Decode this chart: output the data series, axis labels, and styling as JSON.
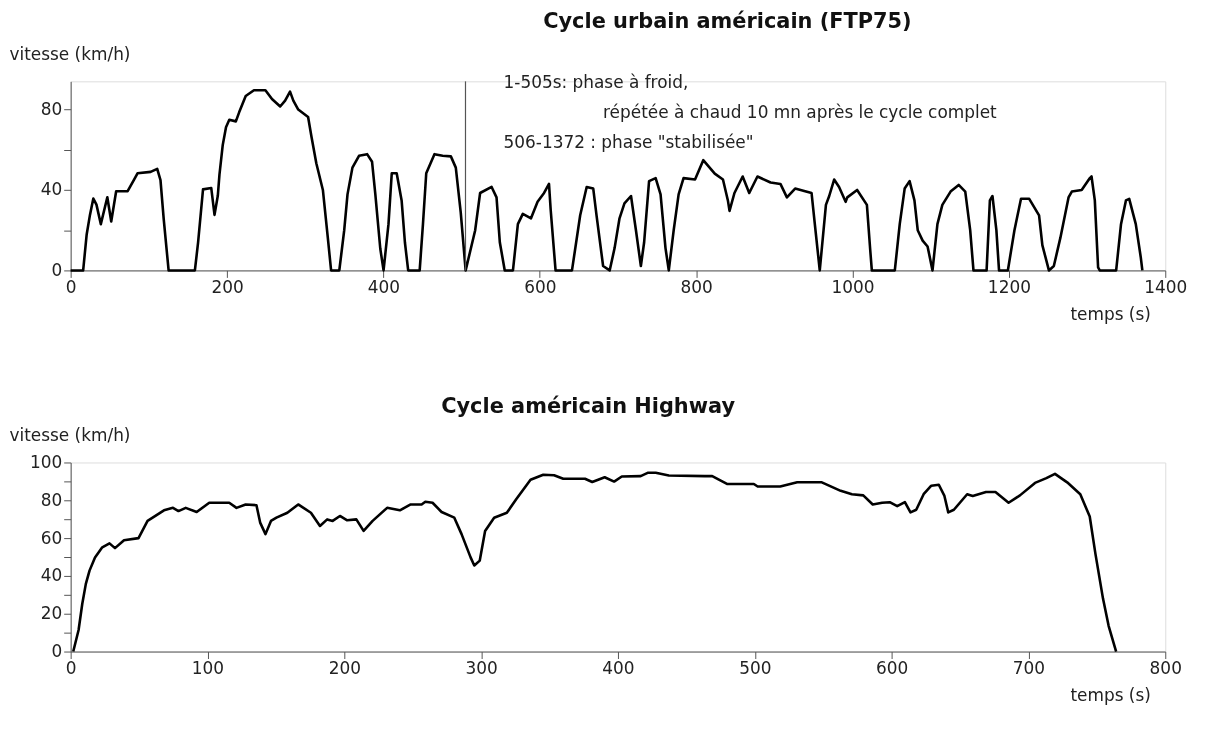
{
  "chart_data": [
    {
      "type": "line",
      "title": "Cycle urbain américain (FTP75)",
      "xlabel": "temps (s)",
      "ylabel": "vitesse (km/h)",
      "annotations": [
        "1-505s: phase à froid,",
        "répétée à chaud 10 mn après le cycle complet",
        "506-1372 : phase \"stabilisée\""
      ],
      "xlim": [
        0,
        1400
      ],
      "ylim": [
        0,
        94
      ],
      "xticks": [
        0,
        200,
        400,
        600,
        800,
        1000,
        1200,
        1400
      ],
      "yticks": [
        0,
        {
          "value": 20,
          "label": null
        },
        40,
        {
          "value": 60,
          "label": null
        },
        80
      ],
      "ref_lines": [
        {
          "axis": "x",
          "value": 505,
          "color": "#555555"
        }
      ],
      "x": [
        0,
        16,
        20.5,
        24.7,
        29,
        33,
        38.6,
        46.9,
        51.9,
        58.2,
        72.9,
        81.3,
        85.5,
        102.3,
        110.7,
        114.9,
        119,
        125.3,
        158.9,
        163,
        169.3,
        179.8,
        184,
        188.2,
        190.3,
        194.5,
        198.7,
        202.9,
        211.3,
        215.5,
        223.9,
        234.4,
        249.1,
        257.5,
        268,
        274.3,
        280.6,
        284.8,
        291.1,
        303.7,
        307.9,
        314.2,
        322.6,
        328.9,
        333.1,
        343.6,
        349.9,
        354.1,
        360.4,
        368.8,
        379.2,
        385.5,
        389.7,
        396,
        400.2,
        406.5,
        410.7,
        417,
        423.3,
        427.5,
        431.7,
        446.4,
        450.6,
        454.8,
        465.3,
        475.8,
        486.3,
        492.6,
        498.9,
        505.2,
        517.4,
        523.7,
        538.4,
        544.7,
        548.9,
        555.2,
        565.7,
        572,
        578.3,
        588.8,
        597.2,
        605.5,
        611.8,
        613.9,
        620.2,
        641.2,
        651.7,
        660,
        668.4,
        672.6,
        681,
        689.4,
        695.7,
        702,
        708.3,
        716.7,
        723,
        729.3,
        733.5,
        739.8,
        748.2,
        754.5,
        760.8,
        765,
        771.3,
        777.6,
        783.9,
        798.6,
        809.1,
        823.8,
        834.3,
        840.6,
        842.7,
        849,
        859.5,
        867.9,
        878.4,
        895.2,
        907.8,
        916.1,
        926.6,
        947.6,
        951.8,
        958.1,
        966,
        970.2,
        976.5,
        982.8,
        991.2,
        993.3,
        1005.9,
        1018.4,
        1022.6,
        1024.7,
        1054.1,
        1060.4,
        1066.7,
        1073,
        1079.2,
        1083.4,
        1089.7,
        1096,
        1102.3,
        1108.6,
        1114.9,
        1125.4,
        1135.8,
        1144.2,
        1150.5,
        1154.7,
        1171.5,
        1175.7,
        1179,
        1184,
        1187.4,
        1198.7,
        1207.1,
        1215.5,
        1226,
        1238.6,
        1242.8,
        1251.2,
        1257.5,
        1265.9,
        1276.3,
        1280.5,
        1293.1,
        1303.6,
        1305.7,
        1309.9,
        1314.1,
        1316.2,
        1337.2,
        1343.4,
        1349.7,
        1353.9,
        1362.3,
        1368.6,
        1370.7
      ],
      "series": [
        {
          "color": "#000000",
          "values": [
            0,
            0,
            17.9,
            27.6,
            35.7,
            32.7,
            23,
            36.4,
            24.3,
            39.4,
            39.4,
            45.3,
            48.3,
            49,
            50.5,
            44.9,
            25.6,
            0,
            0,
            13.9,
            40.3,
            41,
            27.6,
            37.1,
            47.5,
            62.3,
            71.2,
            74.9,
            74.1,
            78.6,
            86.7,
            89.6,
            89.6,
            85.2,
            81.5,
            84.4,
            88.9,
            84.4,
            80,
            76.3,
            66.7,
            53.3,
            40,
            16.3,
            0,
            0,
            20,
            37.8,
            51.1,
            57,
            57.8,
            54,
            37.8,
            10.9,
            0,
            23,
            48.3,
            48.3,
            34.8,
            14,
            0,
            0,
            23,
            48.3,
            57.8,
            57,
            56.7,
            51.1,
            28.9,
            0,
            20,
            38.5,
            41.5,
            36.3,
            14,
            0,
            0,
            23,
            28.1,
            25.9,
            34.1,
            38.5,
            43,
            30.4,
            0,
            0,
            27.4,
            41.5,
            40.7,
            27.4,
            2.2,
            0,
            11.1,
            25.9,
            33.3,
            37,
            20,
            2.2,
            14,
            44.4,
            45.9,
            37.8,
            11.1,
            0,
            20,
            37.8,
            45.9,
            45.2,
            54.8,
            48.1,
            45.2,
            34.8,
            29.6,
            38.5,
            46.7,
            38.5,
            46.7,
            43.7,
            43,
            36.3,
            40.7,
            38.5,
            23,
            0,
            32.6,
            37,
            45.2,
            41.5,
            34.1,
            36.3,
            40,
            32.6,
            10.4,
            0,
            0,
            23,
            40.7,
            44.4,
            34.8,
            20,
            14.8,
            11.9,
            0,
            23,
            32.6,
            39.2,
            42.5,
            39.2,
            20,
            0,
            0,
            34.8,
            37,
            20,
            0,
            0,
            20,
            35.6,
            35.6,
            27.4,
            12.6,
            0,
            2.2,
            16.3,
            36.3,
            39.2,
            40,
            45.9,
            46.7,
            34.8,
            1.5,
            0,
            0,
            23,
            34.8,
            35.6,
            23,
            6.7,
            0
          ]
        }
      ]
    },
    {
      "type": "line",
      "title": "Cycle américain Highway",
      "xlabel": "temps (s)",
      "ylabel": "vitesse (km/h)",
      "xlim": [
        0,
        800
      ],
      "ylim": [
        0,
        100
      ],
      "xticks": [
        0,
        100,
        200,
        300,
        400,
        500,
        600,
        700,
        800
      ],
      "yticks": [
        0,
        {
          "value": 10,
          "label": null
        },
        20,
        {
          "value": 30,
          "label": null
        },
        40,
        {
          "value": 50,
          "label": null
        },
        60,
        {
          "value": 70,
          "label": null
        },
        80,
        {
          "value": 90,
          "label": null
        },
        100
      ],
      "x": [
        1.9,
        5.8,
        8.5,
        11.1,
        13.8,
        17.8,
        23.1,
        28.4,
        32.4,
        39,
        49.6,
        56.2,
        68.2,
        74.8,
        78.8,
        84.1,
        92.1,
        101.3,
        115.9,
        121.2,
        127.9,
        135.8,
        138.5,
        142.4,
        146.4,
        150.4,
        158.4,
        166.3,
        175.6,
        182.2,
        187.5,
        191.5,
        196.8,
        202.1,
        208.8,
        214.1,
        220.7,
        231.3,
        240.6,
        248.5,
        256.5,
        259.2,
        264.5,
        271.1,
        280.4,
        285.7,
        292.3,
        295,
        299,
        302.9,
        309.5,
        318.8,
        325.5,
        336.1,
        345.4,
        353.3,
        360,
        375.9,
        381.2,
        390.3,
        397.2,
        402.8,
        416.6,
        422.1,
        427.6,
        437.2,
        463.4,
        468.9,
        480,
        499.3,
        502.1,
        518.6,
        531,
        549,
        562.8,
        571,
        579.3,
        586.2,
        593.1,
        598.6,
        604.1,
        609.7,
        613.8,
        618,
        623.4,
        629,
        634.5,
        638.6,
        641.4,
        645.5,
        655.2,
        659.3,
        669,
        675.9,
        685.5,
        693.8,
        704.8,
        713.1,
        719.4,
        728.3,
        737.9,
        744.8,
        749,
        754.5,
        758.6,
        764.1
      ],
      "series": [
        {
          "color": "#000000",
          "values": [
            0,
            11.4,
            25.3,
            35.8,
            42.8,
            49.8,
            55.1,
            57.2,
            54.7,
            58.9,
            60,
            69.1,
            74.7,
            76,
            74.3,
            76,
            73.8,
            78.7,
            78.7,
            76,
            77.8,
            77.4,
            68.2,
            62.1,
            69.1,
            70.8,
            73.4,
            77.8,
            73.4,
            66.4,
            69.9,
            69.1,
            71.7,
            69.4,
            69.9,
            63.8,
            69.1,
            76,
            74.7,
            77.8,
            77.8,
            79.2,
            78.7,
            73.8,
            70.8,
            62.1,
            49.8,
            45.5,
            48.1,
            63.8,
            70.8,
            73.4,
            80.4,
            90.9,
            93.5,
            93.2,
            91.4,
            91.4,
            89.7,
            92.2,
            89.9,
            92.6,
            92.8,
            94.6,
            94.6,
            93.1,
            92.8,
            92.8,
            88.6,
            88.6,
            87.3,
            87.3,
            89.5,
            89.5,
            85,
            83.2,
            82.6,
            77.8,
            78.7,
            79,
            76.9,
            79,
            73.6,
            75,
            83.2,
            87.7,
            88.2,
            82.3,
            73.6,
            75,
            83.2,
            82.3,
            84.4,
            84.4,
            78.7,
            82.6,
            89.2,
            91.7,
            94,
            89.5,
            83.2,
            71.4,
            51.5,
            28,
            13.6,
            0
          ]
        }
      ]
    }
  ]
}
